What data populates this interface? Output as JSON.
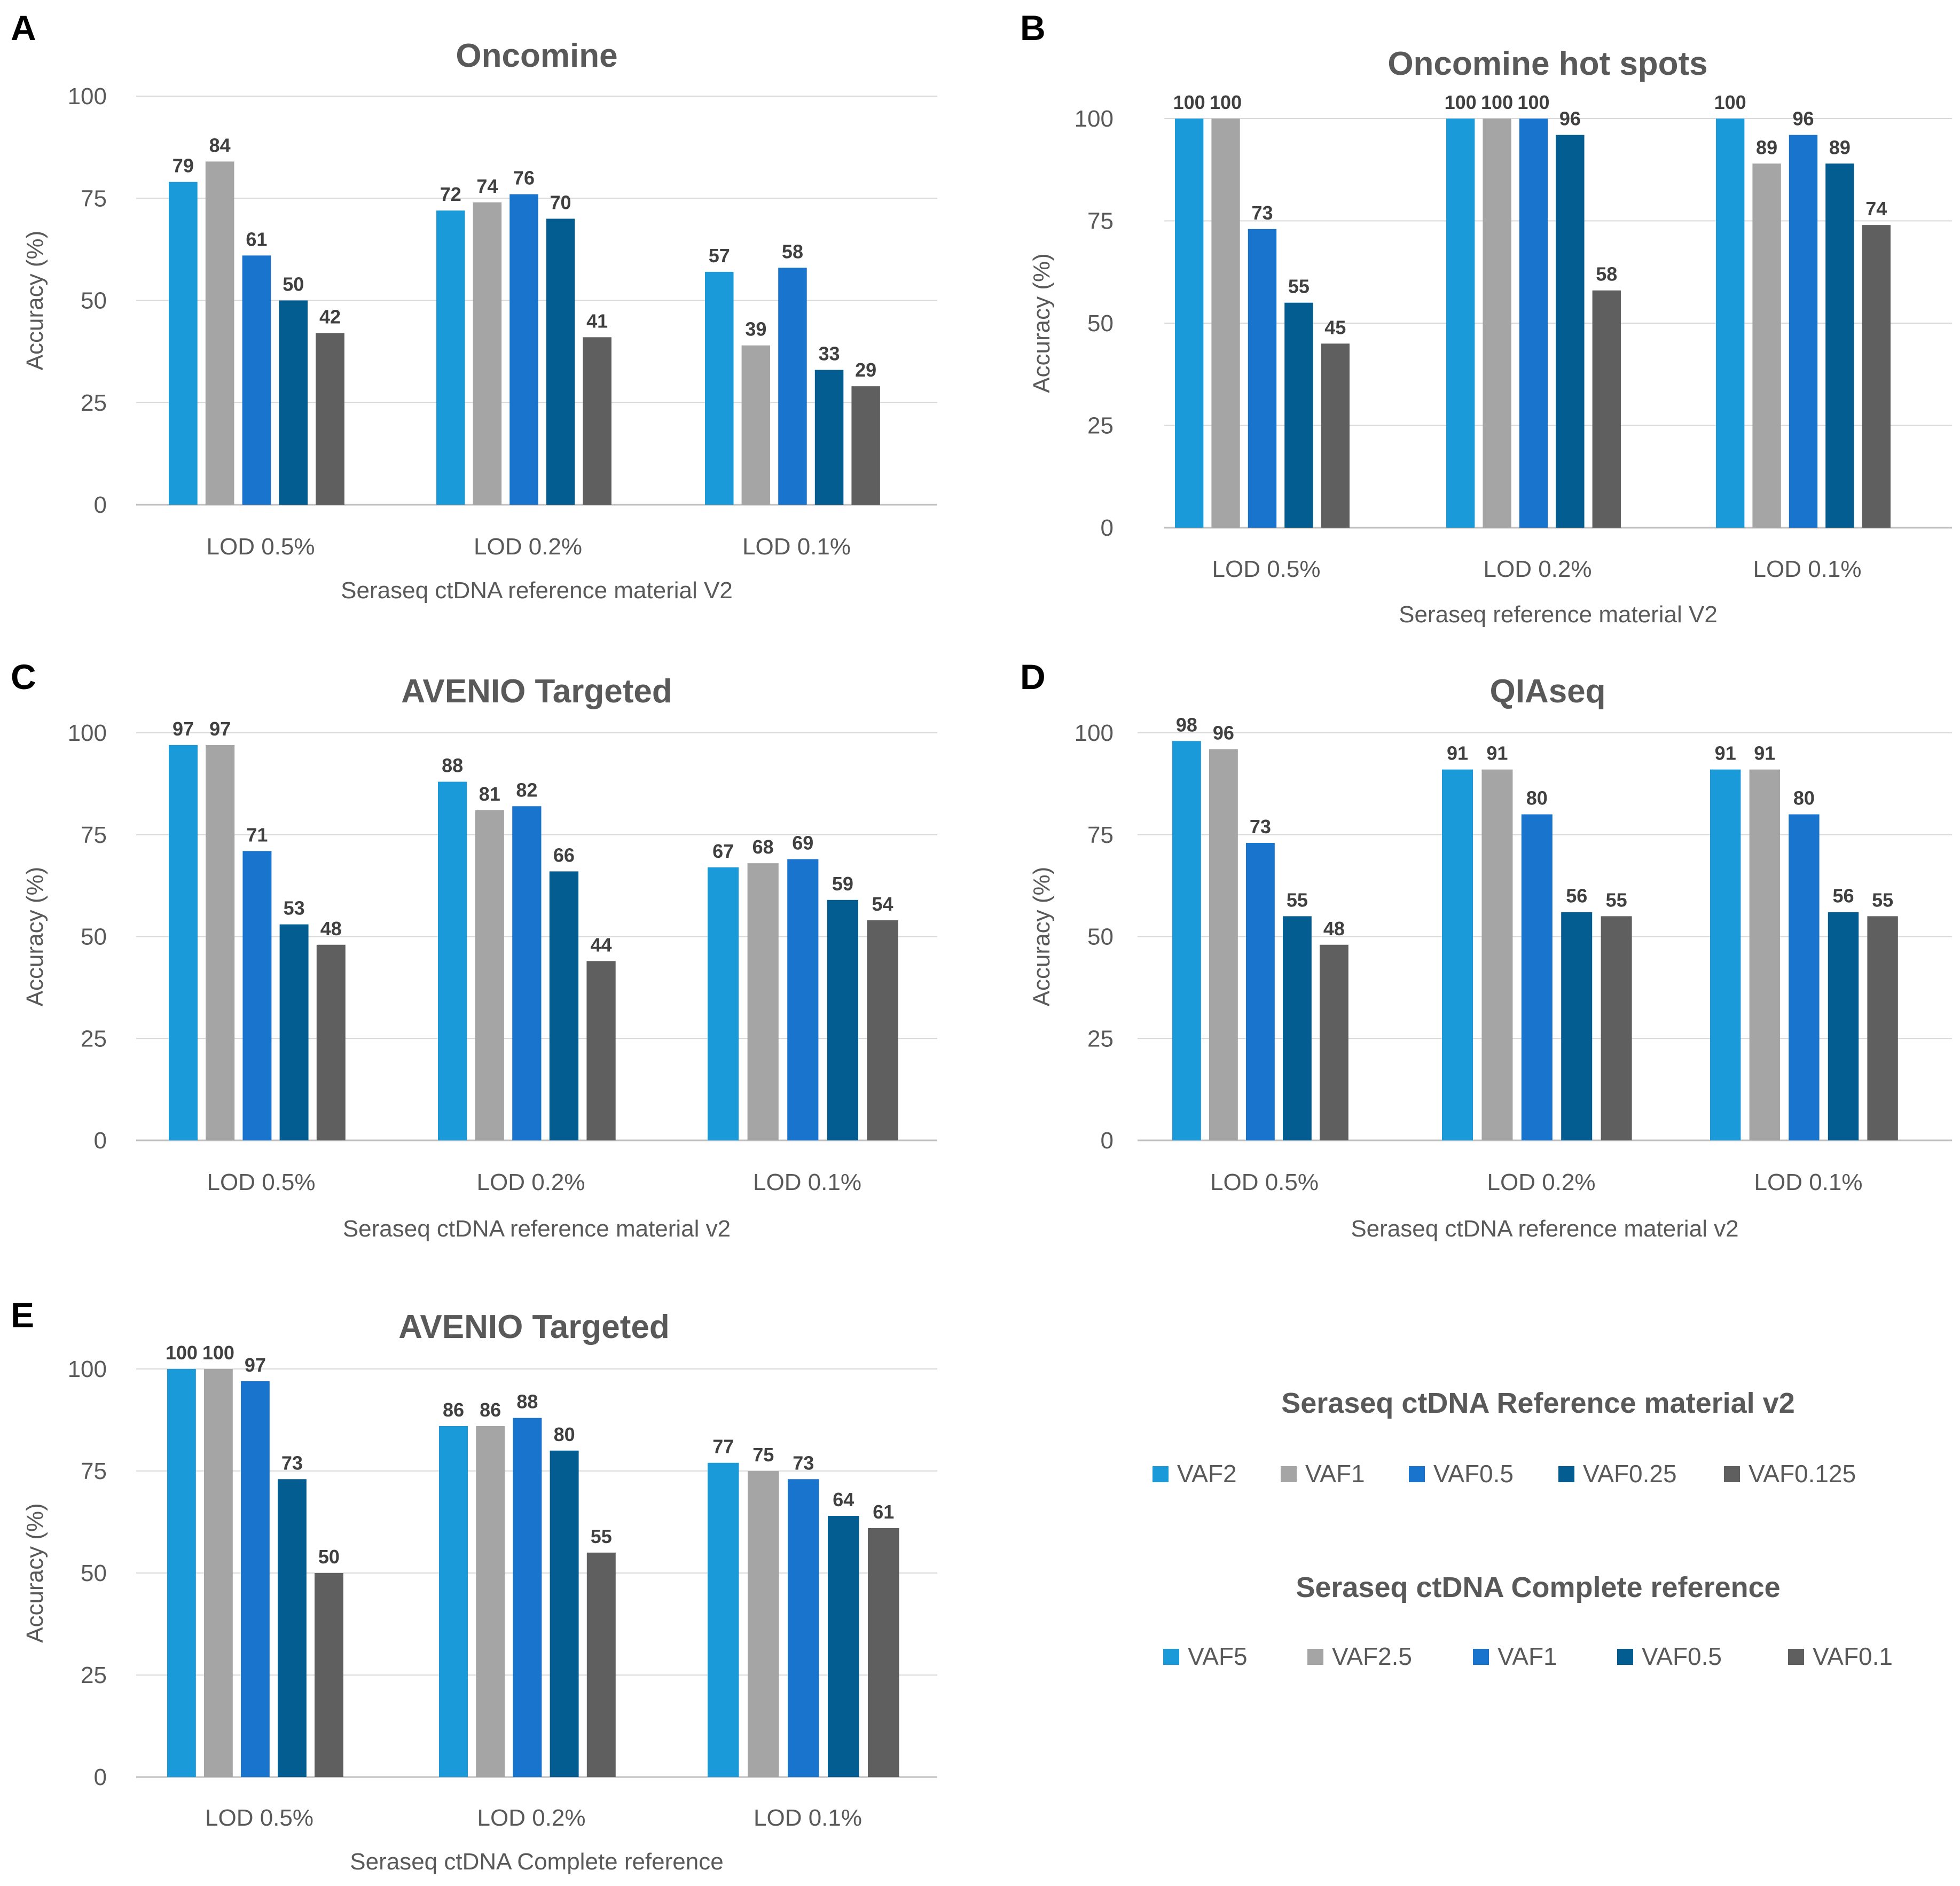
{
  "chart_data": [
    {
      "letter": "A",
      "type": "bar",
      "title": "Oncomine",
      "xlabel": "Seraseq ctDNA reference material V2",
      "ylabel": "Accuracy (%)",
      "ylim": [
        0,
        100
      ],
      "yticks": [
        0,
        25,
        50,
        75,
        100
      ],
      "grid": true,
      "categories": [
        "LOD 0.5%",
        "LOD 0.2%",
        "LOD 0.1%"
      ],
      "series": [
        {
          "name": "VAF2",
          "values": [
            79,
            72,
            57
          ]
        },
        {
          "name": "VAF1",
          "values": [
            84,
            74,
            39
          ]
        },
        {
          "name": "VAF0.5",
          "values": [
            61,
            76,
            58
          ]
        },
        {
          "name": "VAF0.25",
          "values": [
            50,
            70,
            33
          ]
        },
        {
          "name": "VAF0.125",
          "values": [
            42,
            41,
            29
          ]
        }
      ]
    },
    {
      "letter": "B",
      "type": "bar",
      "title": "Oncomine hot spots",
      "xlabel": "Seraseq reference material V2",
      "ylabel": "Accuracy (%)",
      "ylim": [
        0,
        100
      ],
      "yticks": [
        0,
        25,
        50,
        75,
        100
      ],
      "grid": true,
      "categories": [
        "LOD 0.5%",
        "LOD 0.2%",
        "LOD 0.1%"
      ],
      "series": [
        {
          "name": "VAF2",
          "values": [
            100,
            100,
            100
          ]
        },
        {
          "name": "VAF1",
          "values": [
            100,
            100,
            89
          ]
        },
        {
          "name": "VAF0.5",
          "values": [
            73,
            100,
            96
          ]
        },
        {
          "name": "VAF0.25",
          "values": [
            55,
            96,
            89
          ]
        },
        {
          "name": "VAF0.125",
          "values": [
            45,
            58,
            74
          ]
        }
      ]
    },
    {
      "letter": "C",
      "type": "bar",
      "title": "AVENIO Targeted",
      "xlabel": "Seraseq ctDNA reference material v2",
      "ylabel": "Accuracy (%)",
      "ylim": [
        0,
        100
      ],
      "yticks": [
        0,
        25,
        50,
        75,
        100
      ],
      "grid": true,
      "categories": [
        "LOD 0.5%",
        "LOD 0.2%",
        "LOD 0.1%"
      ],
      "series": [
        {
          "name": "VAF2",
          "values": [
            97,
            88,
            67
          ]
        },
        {
          "name": "VAF1",
          "values": [
            97,
            81,
            68
          ]
        },
        {
          "name": "VAF0.5",
          "values": [
            71,
            82,
            69
          ]
        },
        {
          "name": "VAF0.25",
          "values": [
            53,
            66,
            59
          ]
        },
        {
          "name": "VAF0.125",
          "values": [
            48,
            44,
            54
          ]
        }
      ]
    },
    {
      "letter": "D",
      "type": "bar",
      "title": "QIAseq",
      "xlabel": "Seraseq ctDNA reference material v2",
      "ylabel": "Accuracy (%)",
      "ylim": [
        0,
        100
      ],
      "yticks": [
        0,
        25,
        50,
        75,
        100
      ],
      "grid": true,
      "categories": [
        "LOD 0.5%",
        "LOD 0.2%",
        "LOD 0.1%"
      ],
      "series": [
        {
          "name": "VAF2",
          "values": [
            98,
            91,
            91
          ]
        },
        {
          "name": "VAF1",
          "values": [
            96,
            91,
            91
          ]
        },
        {
          "name": "VAF0.5",
          "values": [
            73,
            80,
            80
          ]
        },
        {
          "name": "VAF0.25",
          "values": [
            55,
            56,
            56
          ]
        },
        {
          "name": "VAF0.125",
          "values": [
            48,
            55,
            55
          ]
        }
      ]
    },
    {
      "letter": "E",
      "type": "bar",
      "title": "AVENIO Targeted",
      "xlabel": "Seraseq ctDNA Complete reference",
      "ylabel": "Accuracy (%)",
      "ylim": [
        0,
        100
      ],
      "yticks": [
        0,
        25,
        50,
        75,
        100
      ],
      "grid": true,
      "categories": [
        "LOD 0.5%",
        "LOD 0.2%",
        "LOD 0.1%"
      ],
      "series": [
        {
          "name": "VAF5",
          "values": [
            100,
            86,
            77
          ]
        },
        {
          "name": "VAF2.5",
          "values": [
            100,
            86,
            75
          ]
        },
        {
          "name": "VAF1",
          "values": [
            97,
            88,
            73
          ]
        },
        {
          "name": "VAF0.5",
          "values": [
            73,
            80,
            64
          ]
        },
        {
          "name": "VAF0.1",
          "values": [
            50,
            55,
            61
          ]
        }
      ]
    }
  ],
  "series_colors": [
    "#1a9ad9",
    "#a5a5a5",
    "#1874cd",
    "#045d91",
    "#5f5f5f"
  ],
  "legends": [
    {
      "title": "Seraseq ctDNA Reference material v2",
      "items": [
        "VAF2",
        "VAF1",
        "VAF0.5",
        "VAF0.25",
        "VAF0.125"
      ]
    },
    {
      "title": "Seraseq ctDNA Complete reference",
      "items": [
        "VAF5",
        "VAF2.5",
        "VAF1",
        "VAF0.5",
        "VAF0.1"
      ]
    }
  ]
}
